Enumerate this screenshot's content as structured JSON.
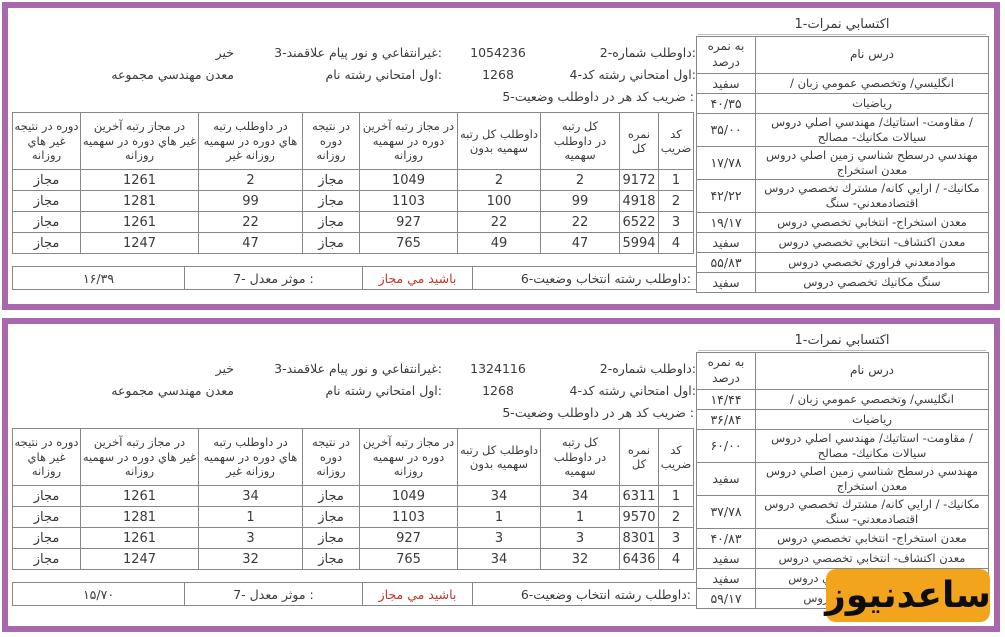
{
  "colors": {
    "panel_border": "#a868ae",
    "table_border": "#878787",
    "status_red": "#c0362c",
    "watermark_bg": "#f2a41c",
    "watermark_fg": "#0d0d0d"
  },
  "watermark": {
    "text": "ساعدنيوز"
  },
  "panels": [
    {
      "scores_title": "1-نمرات اكتسابي",
      "scores_table": {
        "col_percent": "نمره به درصد",
        "col_course": "نام درس",
        "rows": [
          {
            "course": "/ زبان عمومي وتخصصي /انگليسي",
            "percent": "سفيد"
          },
          {
            "course": "رياضيات",
            "percent": "۴۰/۳۵"
          },
          {
            "course": "دروس اصلي مهندسي /استاتيك -مقاومت / مصالح -مكانيك سيالات",
            "percent": "۳۵/۰۰"
          },
          {
            "course": "دروس اصلي زمين شناسي درسطح مهندسي استخراج معدن",
            "percent": "۱۷/۷۸"
          },
          {
            "course": "دروس تخصصي مشترك /كانه ارايي / -مكانيك سنگ -اقتصادمعدني",
            "percent": "۴۲/۲۲"
          },
          {
            "course": "دروس تخصصي انتخابي -استخراج معدن",
            "percent": "۱۹/۱۷"
          },
          {
            "course": "دروس تخصصي انتخابي -اكتشاف معدن",
            "percent": "سفيد"
          },
          {
            "course": "دروس تخصصي فراوري موادمعدني",
            "percent": "۵۵/۸۳"
          },
          {
            "course": "دروس تخصصي مكانيك سنگ",
            "percent": "سفيد"
          }
        ]
      },
      "info": {
        "candidate_label": "2-شماره داوطلب:",
        "candidate_value": "1054236",
        "payamnoor_label": "3-علاقمند پيام نور و غيرانتفاعي:",
        "payamnoor_value": "خير",
        "code_label": "4-كد رشته امتحاني اول:",
        "code_value": "1268",
        "major_label": "نام رشته امتحاني اول:",
        "major_value": "مجموعه مهندسي معدن",
        "section5_label": "5-وضعيت داوطلب در هر كد ضريب :"
      },
      "status_table": {
        "headers": [
          "كد ضريب",
          "نمره كل",
          "رتبه كل داوطلب در سهميه",
          "رتبه كل داوطلب بدون سهميه",
          "آخرين رتبه مجاز در سهميه در دوره روزانه",
          "نتيجه در دوره روزانه",
          "رتبه داوطلب در سهميه در دوره هاي غير روزانه",
          "آخرين رتبه مجاز در سهميه در دوره هاي غير روزانه",
          "نتيجه در دوره هاي غير روزانه"
        ],
        "rows": [
          [
            "1",
            "9172",
            "2",
            "2",
            "1049",
            "مجاز",
            "2",
            "1261",
            "مجاز"
          ],
          [
            "2",
            "4918",
            "99",
            "100",
            "1103",
            "مجاز",
            "99",
            "1281",
            "مجاز"
          ],
          [
            "3",
            "6522",
            "22",
            "22",
            "927",
            "مجاز",
            "22",
            "1261",
            "مجاز"
          ],
          [
            "4",
            "5994",
            "47",
            "49",
            "765",
            "مجاز",
            "47",
            "1247",
            "مجاز"
          ]
        ]
      },
      "footer": {
        "label": "6-وضعيت انتخاب رشته داوطلب:",
        "status": "مجاز مي باشيد",
        "gpa_label": "7- معدل موثر :",
        "gpa_value": "۱۶/۳۹"
      }
    },
    {
      "scores_title": "1-نمرات اكتسابي",
      "scores_table": {
        "col_percent": "نمره به درصد",
        "col_course": "نام درس",
        "rows": [
          {
            "course": "/ زبان عمومي وتخصصي /انگليسي",
            "percent": "۱۴/۴۴"
          },
          {
            "course": "رياضيات",
            "percent": "۳۶/۸۴"
          },
          {
            "course": "دروس اصلي مهندسي /استاتيك -مقاومت / مصالح -مكانيك سيالات",
            "percent": "۶۰/۰۰"
          },
          {
            "course": "دروس اصلي زمين شناسي درسطح مهندسي استخراج معدن",
            "percent": "سفيد"
          },
          {
            "course": "دروس تخصصي مشترك /كانه ارايي / -مكانيك سنگ -اقتصادمعدني",
            "percent": "۳۷/۷۸"
          },
          {
            "course": "دروس تخصصي انتخابي -استخراج معدن",
            "percent": "۴۰/۸۳"
          },
          {
            "course": "دروس تخصصي انتخابي -اكتشاف معدن",
            "percent": "سفيد"
          },
          {
            "course": "دروس تخصصي فراوري موادمعدني",
            "percent": "سفيد"
          },
          {
            "course": "دروس تخصصي مكانيك سنگ",
            "percent": "۵۹/۱۷"
          }
        ]
      },
      "info": {
        "candidate_label": "2-شماره داوطلب:",
        "candidate_value": "1324116",
        "payamnoor_label": "3-علاقمند پيام نور و غيرانتفاعي:",
        "payamnoor_value": "خير",
        "code_label": "4-كد رشته امتحاني اول:",
        "code_value": "1268",
        "major_label": "نام رشته امتحاني اول:",
        "major_value": "مجموعه مهندسي معدن",
        "section5_label": "5-وضعيت داوطلب در هر كد ضريب :"
      },
      "status_table": {
        "headers": [
          "كد ضريب",
          "نمره كل",
          "رتبه كل داوطلب در سهميه",
          "رتبه كل داوطلب بدون سهميه",
          "آخرين رتبه مجاز در سهميه در دوره روزانه",
          "نتيجه در دوره روزانه",
          "رتبه داوطلب در سهميه در دوره هاي غير روزانه",
          "آخرين رتبه مجاز در سهميه در دوره هاي غير روزانه",
          "نتيجه در دوره هاي غير روزانه"
        ],
        "rows": [
          [
            "1",
            "6311",
            "34",
            "34",
            "1049",
            "مجاز",
            "34",
            "1261",
            "مجاز"
          ],
          [
            "2",
            "9570",
            "1",
            "1",
            "1103",
            "مجاز",
            "1",
            "1281",
            "مجاز"
          ],
          [
            "3",
            "8301",
            "3",
            "3",
            "927",
            "مجاز",
            "3",
            "1261",
            "مجاز"
          ],
          [
            "4",
            "6436",
            "32",
            "34",
            "765",
            "مجاز",
            "32",
            "1247",
            "مجاز"
          ]
        ]
      },
      "footer": {
        "label": "6-وضعيت انتخاب رشته داوطلب:",
        "status": "مجاز مي باشيد",
        "gpa_label": "7- معدل موثر :",
        "gpa_value": "۱۵/۷۰"
      }
    }
  ]
}
